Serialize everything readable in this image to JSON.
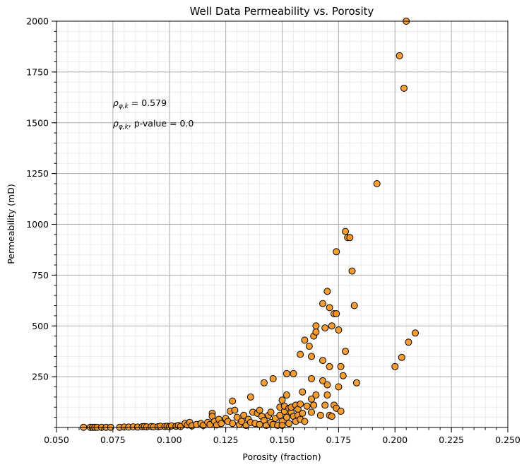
{
  "chart_data": {
    "type": "scatter",
    "title": "Well Data Permeability vs. Porosity",
    "xlabel": "Porosity (fraction)",
    "ylabel": "Permeability (mD)",
    "xlim": [
      0.05,
      0.25
    ],
    "ylim": [
      0,
      2000
    ],
    "x_ticks": [
      "0.050",
      "0.075",
      "0.100",
      "0.125",
      "0.150",
      "0.175",
      "0.200",
      "0.225",
      "0.250"
    ],
    "y_ticks": [
      "250",
      "500",
      "750",
      "1000",
      "1250",
      "1500",
      "1750",
      "2000"
    ],
    "grid": "major and minor",
    "marker_color": "#f7941d",
    "marker_edge_color": "#000000",
    "annotations": [
      {
        "text_parts": [
          "ρ",
          "φ,k",
          " = 0.579"
        ],
        "x": 0.075,
        "y": 1600
      },
      {
        "text_parts": [
          "ρ",
          "φ,k",
          ", p-value = 0.0"
        ],
        "x": 0.075,
        "y": 1500
      }
    ],
    "series": [
      {
        "points": [
          [
            0.062,
            1
          ],
          [
            0.065,
            1
          ],
          [
            0.066,
            1
          ],
          [
            0.067,
            1
          ],
          [
            0.068,
            1
          ],
          [
            0.07,
            1
          ],
          [
            0.072,
            1
          ],
          [
            0.074,
            1
          ],
          [
            0.078,
            1
          ],
          [
            0.08,
            2
          ],
          [
            0.082,
            2
          ],
          [
            0.084,
            3
          ],
          [
            0.086,
            2
          ],
          [
            0.088,
            4
          ],
          [
            0.089,
            5
          ],
          [
            0.09,
            3
          ],
          [
            0.092,
            5
          ],
          [
            0.093,
            3
          ],
          [
            0.095,
            4
          ],
          [
            0.096,
            6
          ],
          [
            0.098,
            5
          ],
          [
            0.099,
            6
          ],
          [
            0.1,
            4
          ],
          [
            0.101,
            8
          ],
          [
            0.103,
            6
          ],
          [
            0.104,
            10
          ],
          [
            0.105,
            5
          ],
          [
            0.107,
            20
          ],
          [
            0.108,
            12
          ],
          [
            0.109,
            25
          ],
          [
            0.11,
            8
          ],
          [
            0.112,
            15
          ],
          [
            0.114,
            20
          ],
          [
            0.115,
            10
          ],
          [
            0.117,
            25
          ],
          [
            0.118,
            15
          ],
          [
            0.119,
            70
          ],
          [
            0.119,
            55
          ],
          [
            0.12,
            30
          ],
          [
            0.121,
            12
          ],
          [
            0.122,
            40
          ],
          [
            0.123,
            20
          ],
          [
            0.125,
            45
          ],
          [
            0.126,
            30
          ],
          [
            0.127,
            80
          ],
          [
            0.128,
            130
          ],
          [
            0.128,
            20
          ],
          [
            0.129,
            85
          ],
          [
            0.13,
            50
          ],
          [
            0.131,
            15
          ],
          [
            0.132,
            30
          ],
          [
            0.133,
            60
          ],
          [
            0.134,
            10
          ],
          [
            0.135,
            40
          ],
          [
            0.136,
            150
          ],
          [
            0.136,
            25
          ],
          [
            0.137,
            75
          ],
          [
            0.138,
            20
          ],
          [
            0.139,
            70
          ],
          [
            0.14,
            85
          ],
          [
            0.14,
            15
          ],
          [
            0.141,
            55
          ],
          [
            0.142,
            220
          ],
          [
            0.142,
            35
          ],
          [
            0.143,
            10
          ],
          [
            0.144,
            60
          ],
          [
            0.145,
            75
          ],
          [
            0.145,
            25
          ],
          [
            0.146,
            240
          ],
          [
            0.146,
            15
          ],
          [
            0.147,
            45
          ],
          [
            0.148,
            10
          ],
          [
            0.149,
            100
          ],
          [
            0.149,
            60
          ],
          [
            0.15,
            135
          ],
          [
            0.15,
            30
          ],
          [
            0.15,
            10
          ],
          [
            0.151,
            80
          ],
          [
            0.151,
            105
          ],
          [
            0.152,
            265
          ],
          [
            0.152,
            160
          ],
          [
            0.152,
            50
          ],
          [
            0.153,
            95
          ],
          [
            0.153,
            20
          ],
          [
            0.154,
            75
          ],
          [
            0.154,
            100
          ],
          [
            0.155,
            265
          ],
          [
            0.155,
            55
          ],
          [
            0.156,
            110
          ],
          [
            0.156,
            30
          ],
          [
            0.157,
            90
          ],
          [
            0.157,
            60
          ],
          [
            0.158,
            360
          ],
          [
            0.158,
            115
          ],
          [
            0.158,
            40
          ],
          [
            0.159,
            175
          ],
          [
            0.159,
            70
          ],
          [
            0.16,
            430
          ],
          [
            0.16,
            30
          ],
          [
            0.161,
            105
          ],
          [
            0.162,
            400
          ],
          [
            0.163,
            350
          ],
          [
            0.163,
            240
          ],
          [
            0.163,
            140
          ],
          [
            0.163,
            75
          ],
          [
            0.164,
            450
          ],
          [
            0.164,
            110
          ],
          [
            0.165,
            500
          ],
          [
            0.165,
            470
          ],
          [
            0.165,
            160
          ],
          [
            0.167,
            60
          ],
          [
            0.168,
            610
          ],
          [
            0.168,
            330
          ],
          [
            0.168,
            230
          ],
          [
            0.169,
            110
          ],
          [
            0.169,
            490
          ],
          [
            0.17,
            210
          ],
          [
            0.17,
            160
          ],
          [
            0.17,
            670
          ],
          [
            0.171,
            590
          ],
          [
            0.171,
            300
          ],
          [
            0.171,
            60
          ],
          [
            0.172,
            500
          ],
          [
            0.172,
            55
          ],
          [
            0.173,
            560
          ],
          [
            0.173,
            110
          ],
          [
            0.174,
            560
          ],
          [
            0.174,
            865
          ],
          [
            0.174,
            95
          ],
          [
            0.175,
            480
          ],
          [
            0.175,
            200
          ],
          [
            0.176,
            300
          ],
          [
            0.176,
            80
          ],
          [
            0.177,
            255
          ],
          [
            0.178,
            375
          ],
          [
            0.178,
            965
          ],
          [
            0.179,
            935
          ],
          [
            0.18,
            935
          ],
          [
            0.181,
            770
          ],
          [
            0.182,
            600
          ],
          [
            0.183,
            220
          ],
          [
            0.192,
            1200
          ],
          [
            0.2,
            300
          ],
          [
            0.202,
            1830
          ],
          [
            0.203,
            345
          ],
          [
            0.204,
            1670
          ],
          [
            0.205,
            2000
          ],
          [
            0.206,
            420
          ],
          [
            0.209,
            465
          ]
        ]
      }
    ]
  }
}
